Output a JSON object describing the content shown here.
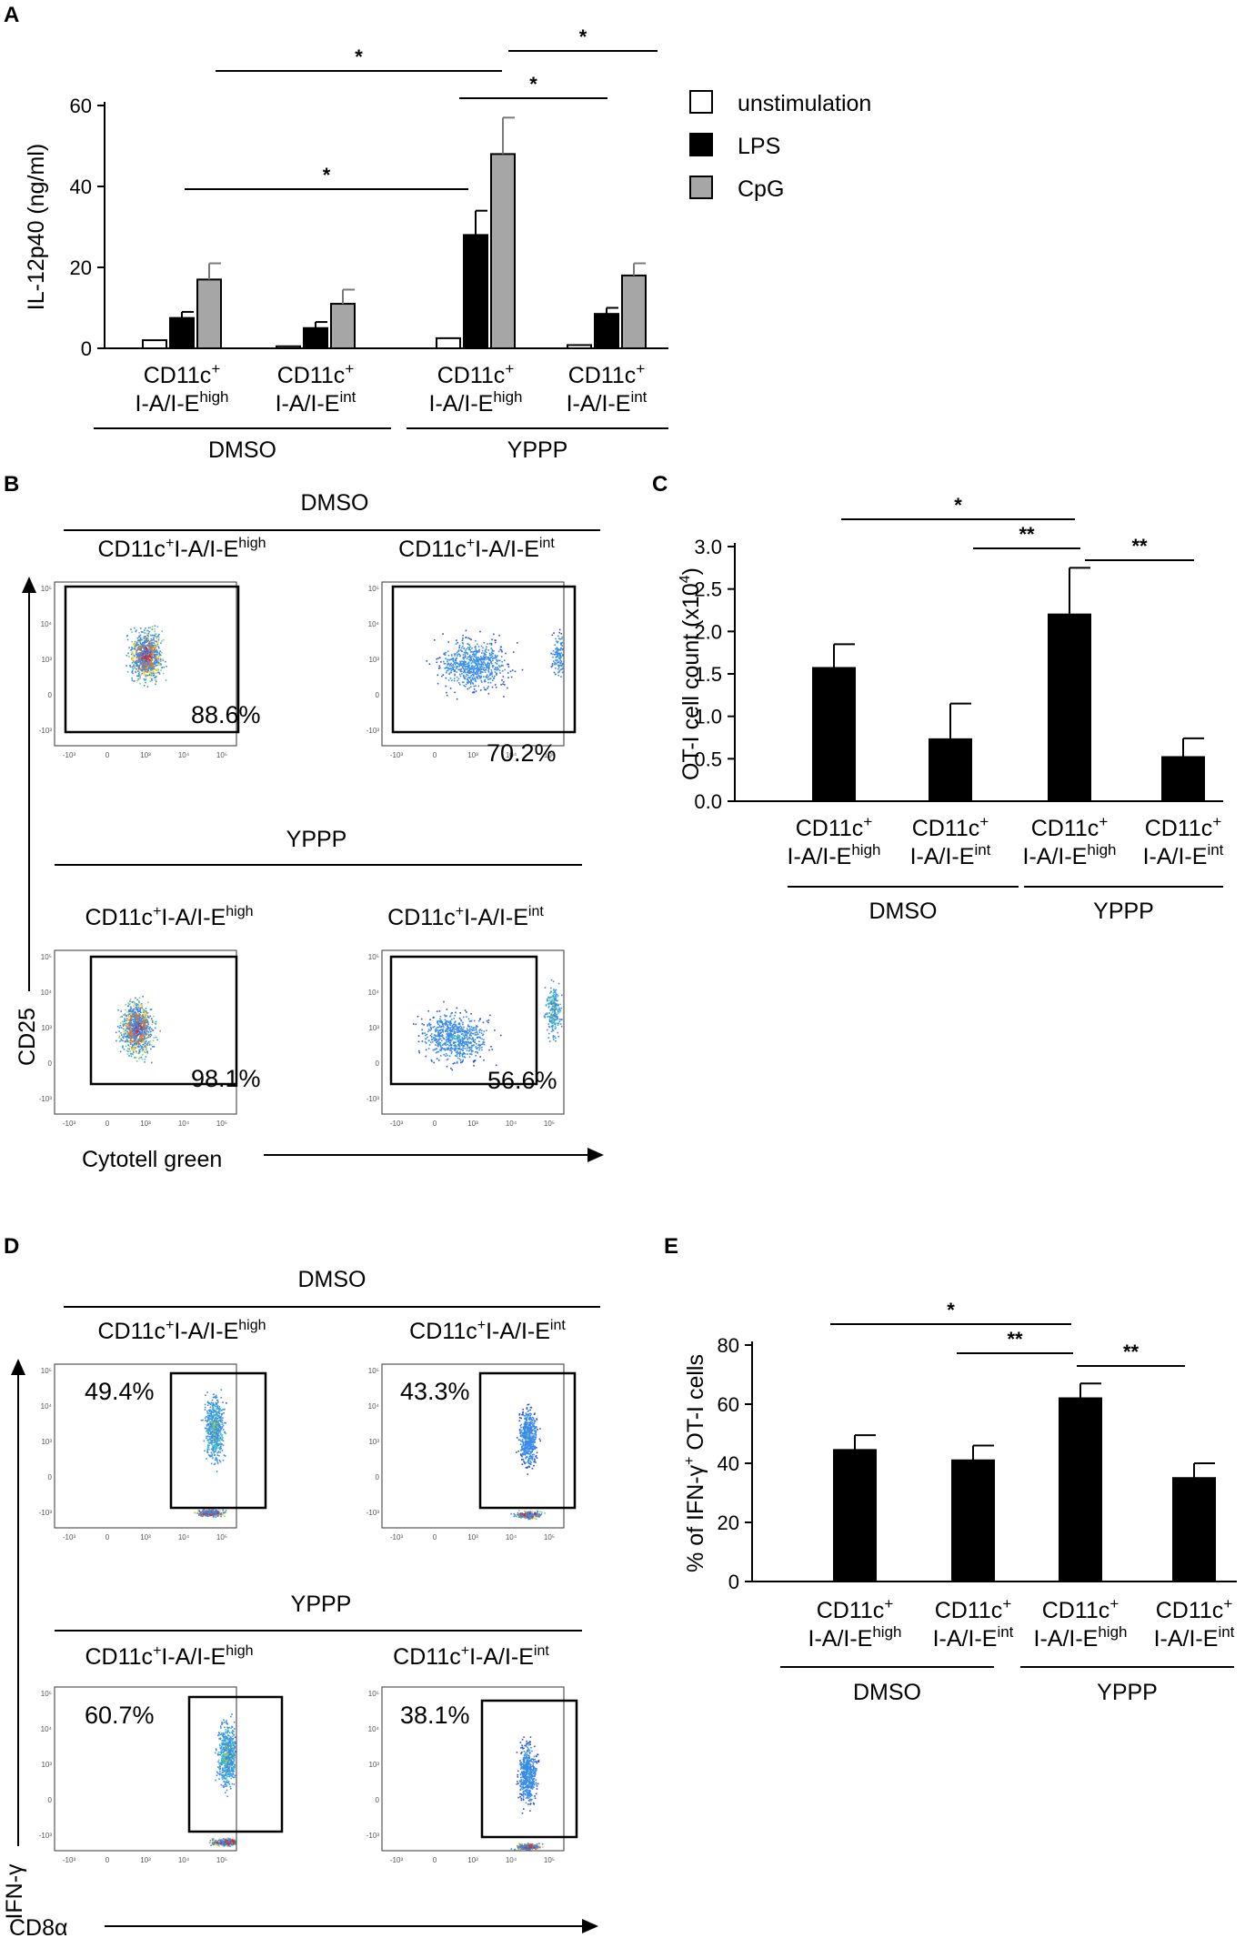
{
  "panels": {
    "A": "A",
    "B": "B",
    "C": "C",
    "D": "D",
    "E": "E"
  },
  "sub": {
    "plus": "+",
    "high": "high",
    "int": "int",
    "four": "4"
  },
  "colors": {
    "white_bar": "#ffffff",
    "black_bar": "#000000",
    "gray_bar": "#a6a6a6"
  },
  "chart_data": [
    {
      "id": "A",
      "type": "bar",
      "ylabel": "IL-12p40 (ng/ml)",
      "ylim": [
        0,
        60
      ],
      "yticks": [
        "0",
        "20",
        "40",
        "60"
      ],
      "categories": [
        {
          "l1": "CD11c",
          "l2": "I-A/I-E",
          "sup": "high"
        },
        {
          "l1": "CD11c",
          "l2": "I-A/I-E",
          "sup": "int"
        },
        {
          "l1": "CD11c",
          "l2": "I-A/I-E",
          "sup": "high"
        },
        {
          "l1": "CD11c",
          "l2": "I-A/I-E",
          "sup": "int"
        }
      ],
      "groups": [
        "DMSO",
        "YPPP"
      ],
      "series": [
        {
          "name": "unstimulation",
          "values": [
            2.0,
            0.5,
            2.5,
            0.8
          ],
          "errors": [
            0,
            0,
            0,
            0
          ]
        },
        {
          "name": "LPS",
          "values": [
            7.5,
            5.0,
            28,
            8.5
          ],
          "errors": [
            1.5,
            1.5,
            6,
            1.5
          ]
        },
        {
          "name": "CpG",
          "values": [
            17,
            11,
            48,
            18
          ],
          "errors": [
            4,
            3.5,
            9,
            3
          ]
        }
      ],
      "significance": [
        "*",
        "*",
        "*",
        "*"
      ]
    },
    {
      "id": "C",
      "type": "bar",
      "ylabel": "OT-I cell count (x10",
      "ylabel_end": ")",
      "ylim": [
        0,
        3.0
      ],
      "yticks": [
        "0.0",
        "0.5",
        "1.0",
        "1.5",
        "2.0",
        "2.5",
        "3.0"
      ],
      "categories": [
        {
          "l1": "CD11c",
          "l2": "I-A/I-E",
          "sup": "high"
        },
        {
          "l1": "CD11c",
          "l2": "I-A/I-E",
          "sup": "int"
        },
        {
          "l1": "CD11c",
          "l2": "I-A/I-E",
          "sup": "high"
        },
        {
          "l1": "CD11c",
          "l2": "I-A/I-E",
          "sup": "int"
        }
      ],
      "groups": [
        "DMSO",
        "YPPP"
      ],
      "values": [
        1.57,
        0.73,
        2.2,
        0.52
      ],
      "errors": [
        0.28,
        0.42,
        0.55,
        0.22
      ],
      "significance": [
        "*",
        "**",
        "**"
      ]
    },
    {
      "id": "E",
      "type": "bar",
      "ylabel": "% of IFN-γ",
      "ylabel_end": " OT-I cells",
      "ylim": [
        0,
        80
      ],
      "yticks": [
        "0",
        "20",
        "40",
        "60",
        "80"
      ],
      "categories": [
        {
          "l1": "CD11c",
          "l2": "I-A/I-E",
          "sup": "high"
        },
        {
          "l1": "CD11c",
          "l2": "I-A/I-E",
          "sup": "int"
        },
        {
          "l1": "CD11c",
          "l2": "I-A/I-E",
          "sup": "high"
        },
        {
          "l1": "CD11c",
          "l2": "I-A/I-E",
          "sup": "int"
        }
      ],
      "groups": [
        "DMSO",
        "YPPP"
      ],
      "values": [
        44.5,
        41,
        62,
        35
      ],
      "errors": [
        5,
        5,
        5,
        5
      ],
      "significance": [
        "*",
        "**",
        "**"
      ]
    }
  ],
  "flow": {
    "B": {
      "header_top": "DMSO",
      "header_bottom": "YPPP",
      "ylabel": "CD25",
      "xlabel": "Cytotell green",
      "plots": [
        {
          "title": "CD11c",
          "sup": "high",
          "pct": "88.6%"
        },
        {
          "title": "CD11c",
          "sup": "int",
          "pct": "70.2%"
        },
        {
          "title": "CD11c",
          "sup": "high",
          "pct": "98.1%"
        },
        {
          "title": "CD11c",
          "sup": "int",
          "pct": "56.6%"
        }
      ]
    },
    "D": {
      "header_top": "DMSO",
      "header_bottom": "YPPP",
      "ylabel": "IFN-γ",
      "xlabel": "CD8α",
      "plots": [
        {
          "title": "CD11c",
          "sup": "high",
          "pct": "49.4%"
        },
        {
          "title": "CD11c",
          "sup": "int",
          "pct": "43.3%"
        },
        {
          "title": "CD11c",
          "sup": "high",
          "pct": "60.7%"
        },
        {
          "title": "CD11c",
          "sup": "int",
          "pct": "38.1%"
        }
      ]
    },
    "tick_y": [
      "10⁵",
      "10⁴",
      "10³",
      "0",
      "-10³"
    ],
    "tick_x": [
      "-10³",
      "0",
      "10³",
      "10⁴",
      "10⁵"
    ]
  }
}
